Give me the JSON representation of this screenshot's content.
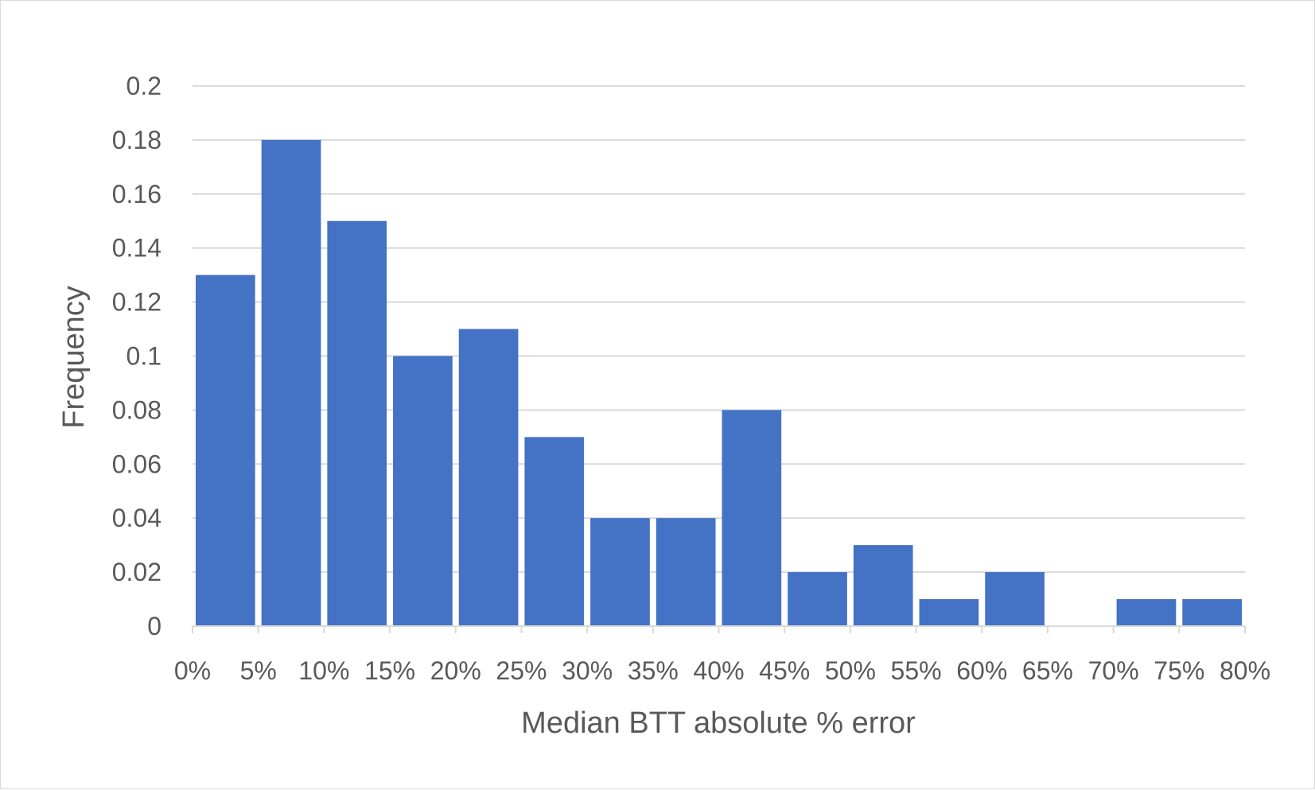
{
  "chart_data": {
    "type": "bar",
    "title": "",
    "xlabel": "Median BTT absolute % error",
    "ylabel": "Frequency",
    "bin_edges": [
      "0%",
      "5%",
      "10%",
      "15%",
      "20%",
      "25%",
      "30%",
      "35%",
      "40%",
      "45%",
      "50%",
      "55%",
      "60%",
      "65%",
      "70%",
      "75%",
      "80%"
    ],
    "values": [
      0.13,
      0.18,
      0.15,
      0.1,
      0.11,
      0.07,
      0.04,
      0.04,
      0.08,
      0.02,
      0.03,
      0.01,
      0.02,
      0.0,
      0.01,
      0.01
    ],
    "yticks": [
      "0",
      "0.02",
      "0.04",
      "0.06",
      "0.08",
      "0.1",
      "0.12",
      "0.14",
      "0.16",
      "0.18",
      "0.2"
    ],
    "ylim": [
      0,
      0.2
    ],
    "grid": true,
    "legend": "none",
    "colors": {
      "bar": "#4472c4",
      "grid": "#d9d9d9",
      "text": "#595959"
    }
  }
}
